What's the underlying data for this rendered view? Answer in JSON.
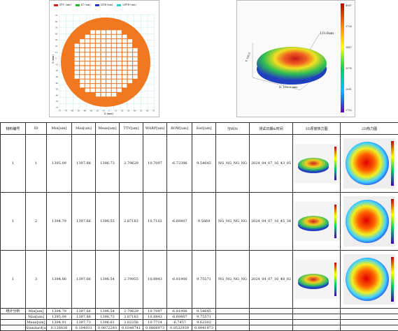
{
  "wafer_map": {
    "legend": [
      {
        "label": "ΣTV (um)",
        "color": "#d42020"
      },
      {
        "label": "LT (um)",
        "color": "#22bb22"
      },
      {
        "label": "LTIR (um)",
        "color": "#2233cc"
      },
      {
        "label": "LFPD (um)",
        "color": "#22cccc"
      }
    ],
    "y_label": "Y (mm)",
    "x_label": "X (mm)",
    "ticks": [
      "-75",
      "-70",
      "-60",
      "-50",
      "-40",
      "-30",
      "-20",
      "-10",
      "0",
      "10",
      "20",
      "30",
      "40",
      "50",
      "60",
      "70"
    ],
    "colors": {
      "fill": "#f07820",
      "die": "#ffffff"
    }
  },
  "plot3d": {
    "annotation": "131.6um",
    "x_axis": "X: 100.0 mm",
    "y_axis": "Y: 100.0",
    "colorbar_labels": [
      "4067",
      "3758",
      "3467",
      "3076",
      "2681",
      "2752"
    ]
  },
  "table": {
    "headers": [
      "物料编号",
      "ID",
      "Min[um]",
      "Max[um]",
      "Mean[um]",
      "TTV[um]",
      "WARP[um]",
      "BOW[um]",
      "Sori[um]",
      "分BIN",
      "测试日期&时间",
      "3D厚度热力图",
      "2D热力图"
    ],
    "rows": [
      {
        "no": "1",
        "id": "1",
        "min": "1395.09",
        "max": "1397.88",
        "mean": "1396.73",
        "ttv": "2.79629",
        "warp": "10.7097",
        "bow": "-6.72396",
        "sori": "9.54645",
        "bin": "NG_NG_NG_NG",
        "time": "2024_04_07_16_43_05"
      },
      {
        "no": "1",
        "id": "2",
        "min": "1394.79",
        "max": "1397.66",
        "mean": "1396.55",
        "ttv": "2.87183",
        "warp": "10.7102",
        "bow": "-6.69407",
        "sori": "9.5669",
        "bin": "NG_NG_NG_NG",
        "time": "2024_04_07_16_45_38"
      },
      {
        "no": "1",
        "id": "3",
        "min": "1394.86",
        "max": "1397.66",
        "mean": "1396.54",
        "ttv": "2.79955",
        "warp": "10.8943",
        "bow": "-6.81906",
        "sori": "9.75571",
        "bin": "NG_NG_NG_NG",
        "time": "2024_04_07_16_48_02"
      }
    ],
    "stats_title": "统计分析",
    "stats": [
      {
        "label": "Min[um]",
        "min": "1394.79",
        "max": "1397.66",
        "mean": "1396.54",
        "ttv": "2.79629",
        "warp": "10.7097",
        "bow": "-6.81906",
        "sori": "9.54645"
      },
      {
        "label": "Max[um]",
        "min": "1395.09",
        "max": "1397.88",
        "mean": "1396.73",
        "ttv": "2.87183",
        "warp": "10.8943",
        "bow": "-6.69407",
        "sori": "9.75571"
      },
      {
        "label": "Mean[um]",
        "min": "1394.91",
        "max": "1397.73",
        "mean": "1396.61",
        "ttv": "2.82256",
        "warp": "10.7714",
        "bow": "-6.7457",
        "sori": "9.62302"
      },
      {
        "label": "Standard[um]",
        "min": "0.126836",
        "max": "0.104933",
        "mean": "0.0872293",
        "ttv": "0.0348741",
        "warp": "0.0868973",
        "bow": "0.0532939",
        "sori": "0.0941973"
      }
    ]
  }
}
